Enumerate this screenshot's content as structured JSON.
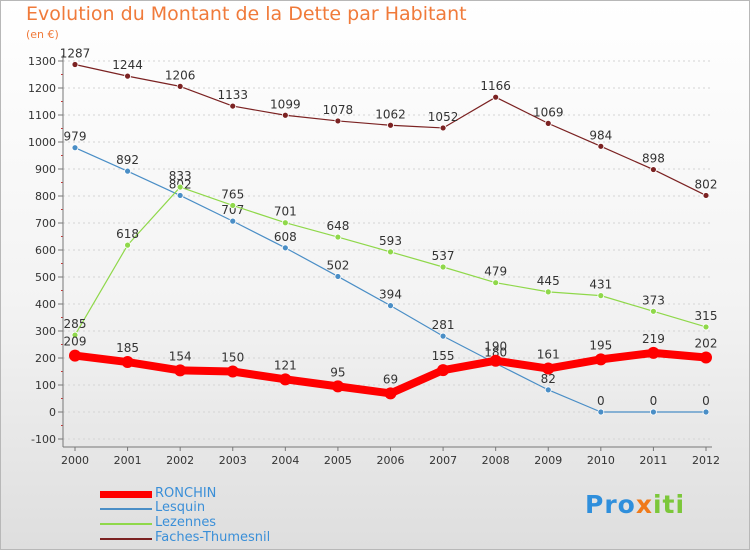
{
  "title": "Evolution du Montant de la Dette par Habitant",
  "subtitle": "(en €)",
  "logo": {
    "parts": [
      {
        "text": "Pro",
        "color": "#2f8fdc"
      },
      {
        "text": "x",
        "color": "#f07a1a"
      },
      {
        "text": "iti",
        "color": "#7cc73a"
      }
    ]
  },
  "chart_data": {
    "type": "line",
    "x": [
      "2000",
      "2001",
      "2002",
      "2003",
      "2004",
      "2005",
      "2006",
      "2007",
      "2008",
      "2009",
      "2010",
      "2011",
      "2012"
    ],
    "ylim": [
      -100,
      1300
    ],
    "yticks": [
      -100,
      0,
      100,
      200,
      300,
      400,
      500,
      600,
      700,
      800,
      900,
      1000,
      1100,
      1200,
      1300
    ],
    "grid": "horizontal",
    "legend_position": "bottom-left",
    "series": [
      {
        "name": "Faches-Thumesnil",
        "color": "#7b2222",
        "values": [
          1287,
          1244,
          1206,
          1133,
          1099,
          1078,
          1062,
          1052,
          1166,
          1069,
          984,
          898,
          802
        ],
        "labels": [
          "1287",
          "1244",
          "1206",
          "1133",
          "1099",
          "1078",
          "1062",
          "1052",
          "1166",
          "1069",
          "984",
          "898",
          "802"
        ]
      },
      {
        "name": "Lesquin",
        "color": "#4a8ec6",
        "values": [
          979,
          892,
          802,
          707,
          608,
          502,
          394,
          281,
          180,
          82,
          0,
          0,
          0
        ],
        "labels": [
          "979",
          "892",
          "802",
          "707",
          "608",
          "502",
          "394",
          "281",
          "180",
          "82",
          "0",
          "0",
          "0"
        ]
      },
      {
        "name": "Lezennes",
        "color": "#8fd84a",
        "values": [
          285,
          618,
          833,
          765,
          701,
          648,
          593,
          537,
          479,
          445,
          431,
          373,
          315
        ],
        "labels": [
          "285",
          "618",
          "833",
          "765",
          "701",
          "648",
          "593",
          "537",
          "479",
          "445",
          "431",
          "373",
          "315"
        ]
      },
      {
        "name": "RONCHIN",
        "color": "#ff0000",
        "values": [
          209,
          185,
          154,
          150,
          121,
          95,
          69,
          155,
          190,
          161,
          195,
          219,
          202
        ],
        "labels": [
          "209",
          "185",
          "154",
          "150",
          "121",
          "95",
          "69",
          "155",
          "190",
          "161",
          "195",
          "219",
          "202"
        ]
      }
    ]
  },
  "legend": [
    {
      "label": "RONCHIN",
      "color": "#ff0000",
      "thick": true
    },
    {
      "label": "Lesquin",
      "color": "#4a8ec6",
      "thick": false
    },
    {
      "label": "Lezennes",
      "color": "#8fd84a",
      "thick": false
    },
    {
      "label": "Faches-Thumesnil",
      "color": "#7b2222",
      "thick": false
    }
  ]
}
